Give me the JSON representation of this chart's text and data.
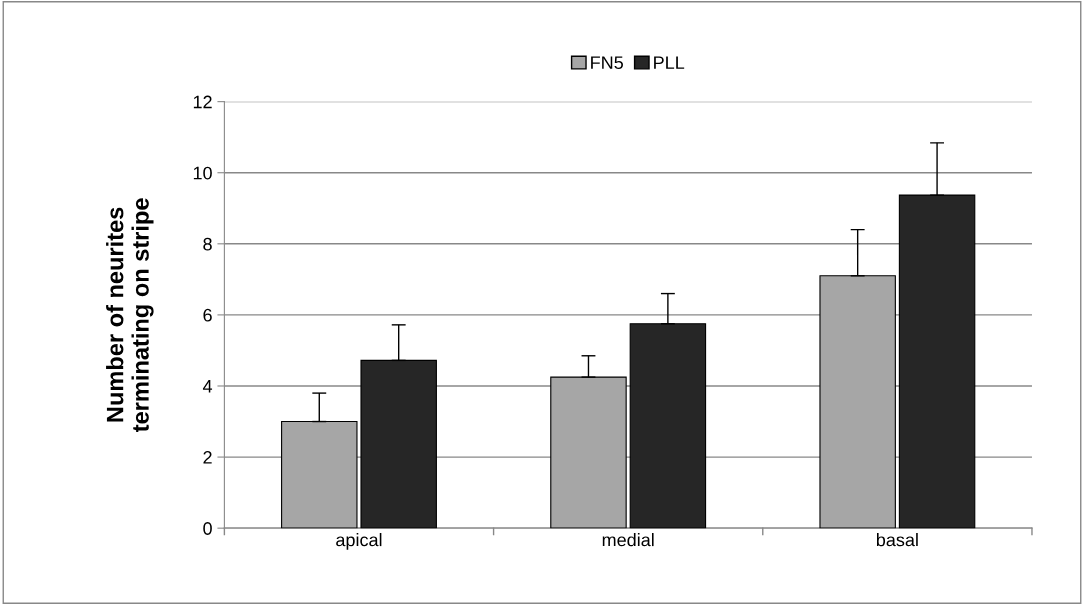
{
  "chart_data": {
    "type": "bar",
    "ylabel": "Number of neurites\nterminating on stripe",
    "categories": [
      "apical",
      "medial",
      "basal"
    ],
    "series": [
      {
        "name": "FN5",
        "color": "#a6a6a6",
        "values": [
          3.0,
          4.25,
          7.1
        ],
        "errors": [
          [
            3.0,
            3.8
          ],
          [
            4.25,
            4.85
          ],
          [
            7.1,
            8.4
          ]
        ]
      },
      {
        "name": "PLL",
        "color": "#262626",
        "values": [
          4.72,
          5.75,
          9.37
        ],
        "errors": [
          [
            4.72,
            5.72
          ],
          [
            5.75,
            6.6
          ],
          [
            9.37,
            10.84
          ]
        ]
      }
    ],
    "ylim": [
      0,
      12
    ],
    "yticks": [
      0,
      2,
      4,
      6,
      8,
      10,
      12
    ],
    "grid": "y",
    "legend": "top"
  }
}
